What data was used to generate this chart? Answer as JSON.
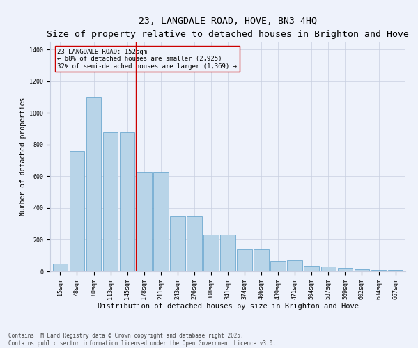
{
  "title": "23, LANGDALE ROAD, HOVE, BN3 4HQ",
  "subtitle": "Size of property relative to detached houses in Brighton and Hove",
  "xlabel": "Distribution of detached houses by size in Brighton and Hove",
  "ylabel": "Number of detached properties",
  "categories": [
    "15sqm",
    "48sqm",
    "80sqm",
    "113sqm",
    "145sqm",
    "178sqm",
    "211sqm",
    "243sqm",
    "276sqm",
    "308sqm",
    "341sqm",
    "374sqm",
    "406sqm",
    "439sqm",
    "471sqm",
    "504sqm",
    "537sqm",
    "569sqm",
    "602sqm",
    "634sqm",
    "667sqm"
  ],
  "values": [
    50,
    760,
    1100,
    880,
    880,
    630,
    630,
    345,
    345,
    235,
    235,
    140,
    140,
    65,
    70,
    35,
    30,
    20,
    15,
    10,
    10
  ],
  "bar_color": "#b8d4e8",
  "bar_edgecolor": "#5a9ec9",
  "vline_x": 4.5,
  "vline_color": "#cc0000",
  "annotation_text": "23 LANGDALE ROAD: 152sqm\n← 68% of detached houses are smaller (2,925)\n32% of semi-detached houses are larger (1,369) →",
  "annotation_box_edgecolor": "#cc0000",
  "ylim": [
    0,
    1450
  ],
  "yticks": [
    0,
    200,
    400,
    600,
    800,
    1000,
    1200,
    1400
  ],
  "background_color": "#eef2fb",
  "grid_color": "#c8cfe0",
  "footer_line1": "Contains HM Land Registry data © Crown copyright and database right 2025.",
  "footer_line2": "Contains public sector information licensed under the Open Government Licence v3.0.",
  "title_fontsize": 9.5,
  "subtitle_fontsize": 8,
  "axis_label_fontsize": 7.5,
  "tick_fontsize": 6,
  "annotation_fontsize": 6.5,
  "footer_fontsize": 5.5,
  "ylabel_fontsize": 7
}
